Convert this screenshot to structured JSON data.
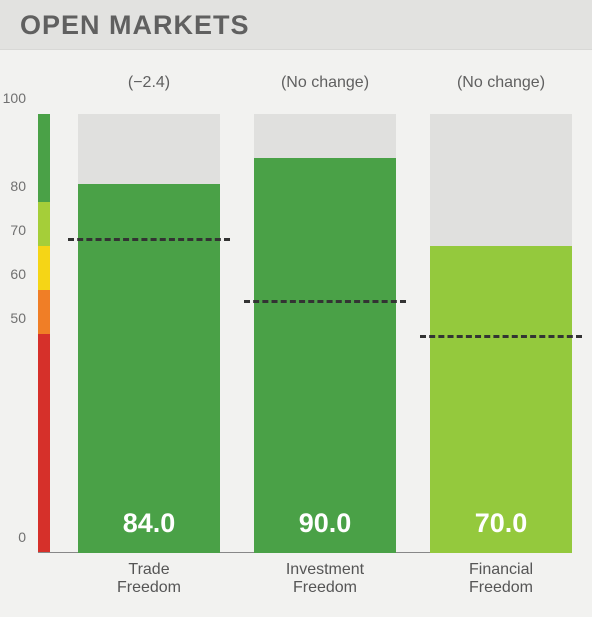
{
  "header": {
    "title": "OPEN MARKETS"
  },
  "chart": {
    "type": "bar",
    "ylim": [
      0,
      100
    ],
    "yticks": [
      0,
      50,
      60,
      70,
      80,
      100
    ],
    "background_color": "#f2f2f0",
    "bar_bg_color": "#e0e0de",
    "axis_color": "#888888",
    "tick_label_color": "#707070",
    "tick_fontsize": 14,
    "value_fontsize": 27,
    "value_color": "#ffffff",
    "annotation_fontsize": 16,
    "category_fontsize": 16,
    "benchmark_line": {
      "color": "#333333",
      "width": 3,
      "dash": "6 6"
    },
    "color_scale": [
      {
        "from": 0,
        "to": 50,
        "color": "#d6302a"
      },
      {
        "from": 50,
        "to": 60,
        "color": "#f07e26"
      },
      {
        "from": 60,
        "to": 70,
        "color": "#f5d516"
      },
      {
        "from": 70,
        "to": 80,
        "color": "#a5ce39"
      },
      {
        "from": 80,
        "to": 100,
        "color": "#4aa147"
      }
    ],
    "series": [
      {
        "category": "Trade\nFreedom",
        "change_label": "(−2.4)",
        "value": 84.0,
        "value_label": "84.0",
        "bar_color": "#4aa147",
        "benchmark": 71
      },
      {
        "category": "Investment\nFreedom",
        "change_label": "(No change)",
        "value": 90.0,
        "value_label": "90.0",
        "bar_color": "#4aa147",
        "benchmark": 57
      },
      {
        "category": "Financial\nFreedom",
        "change_label": "(No change)",
        "value": 70.0,
        "value_label": "70.0",
        "bar_color": "#94c93d",
        "benchmark": 49
      }
    ]
  }
}
